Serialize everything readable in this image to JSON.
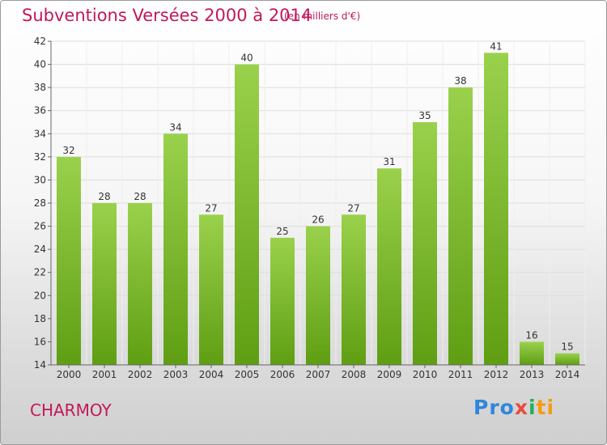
{
  "header": {
    "title": "Subventions Versées 2000 à 2014",
    "subtitle": "(en milliers d'€)"
  },
  "footer": {
    "commune": "CHARMOY",
    "logo_text": "Proxiti"
  },
  "colors": {
    "title": "#c2185b",
    "bar_light": "#9ad14c",
    "bar_dark": "#5f9e13"
  },
  "chart_data": {
    "type": "bar",
    "title": "Subventions Versées 2000 à 2014",
    "subtitle": "(en milliers d'€)",
    "xlabel": "",
    "ylabel": "",
    "categories": [
      "2000",
      "2001",
      "2002",
      "2003",
      "2004",
      "2005",
      "2006",
      "2007",
      "2008",
      "2009",
      "2010",
      "2011",
      "2012",
      "2013",
      "2014"
    ],
    "values": [
      32,
      28,
      28,
      34,
      27,
      40,
      25,
      26,
      27,
      31,
      35,
      38,
      41,
      16,
      15
    ],
    "ylim": [
      14,
      42
    ],
    "yticks": [
      14,
      16,
      18,
      20,
      22,
      24,
      26,
      28,
      30,
      32,
      34,
      36,
      38,
      40,
      42
    ],
    "grid": true,
    "data_labels": true
  }
}
